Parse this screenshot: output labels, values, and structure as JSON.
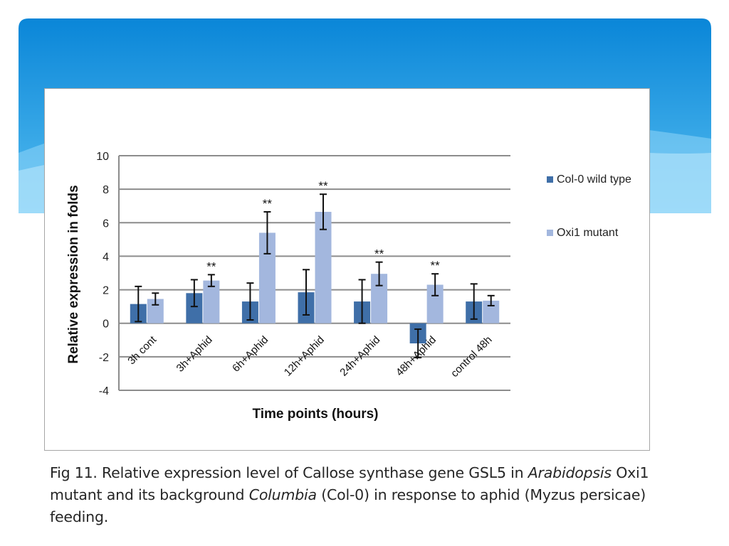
{
  "chart_data": {
    "type": "bar",
    "title": "",
    "xlabel": "Time points (hours)",
    "ylabel": "Relative expression in folds",
    "ylim": [
      -4,
      10
    ],
    "yticks": [
      -4,
      -2,
      0,
      2,
      4,
      6,
      8,
      10
    ],
    "grid": true,
    "legend_position": "right",
    "categories": [
      "3h cont",
      "3h+Aphid",
      "6h+Aphid",
      "12h+Aphid",
      "24h+Aphid",
      "48h+Aphid",
      "control 48h"
    ],
    "series": [
      {
        "name": "Col-0 wild type",
        "color": "#3f6fa8",
        "values": [
          1.15,
          1.8,
          1.3,
          1.85,
          1.3,
          -1.2,
          1.3
        ],
        "error": [
          1.05,
          0.8,
          1.1,
          1.35,
          1.3,
          0.85,
          1.05
        ]
      },
      {
        "name": "Oxi1 mutant",
        "color": "#a3b7de",
        "values": [
          1.45,
          2.55,
          5.4,
          6.65,
          2.95,
          2.3,
          1.35
        ],
        "error": [
          0.35,
          0.35,
          1.25,
          1.05,
          0.7,
          0.65,
          0.3
        ]
      }
    ],
    "annotations": [
      {
        "category": "3h+Aphid",
        "text": "**"
      },
      {
        "category": "6h+Aphid",
        "text": "**"
      },
      {
        "category": "12h+Aphid",
        "text": "**"
      },
      {
        "category": "24h+Aphid",
        "text": "**"
      },
      {
        "category": "48h+Aphid",
        "text": "**"
      }
    ]
  },
  "caption": {
    "prefix": "Fig 11. Relative expression level of Callose synthase gene GSL5 in ",
    "italic1": "Arabidopsis",
    "middle1": " Oxi1 mutant and its background ",
    "italic2": "Columbia",
    "suffix": " (Col-0) in response to aphid (Myzus persicae) feeding."
  },
  "theme": {
    "banner_top": "#0a86d8",
    "banner_bottom": "#5cc0f2"
  }
}
